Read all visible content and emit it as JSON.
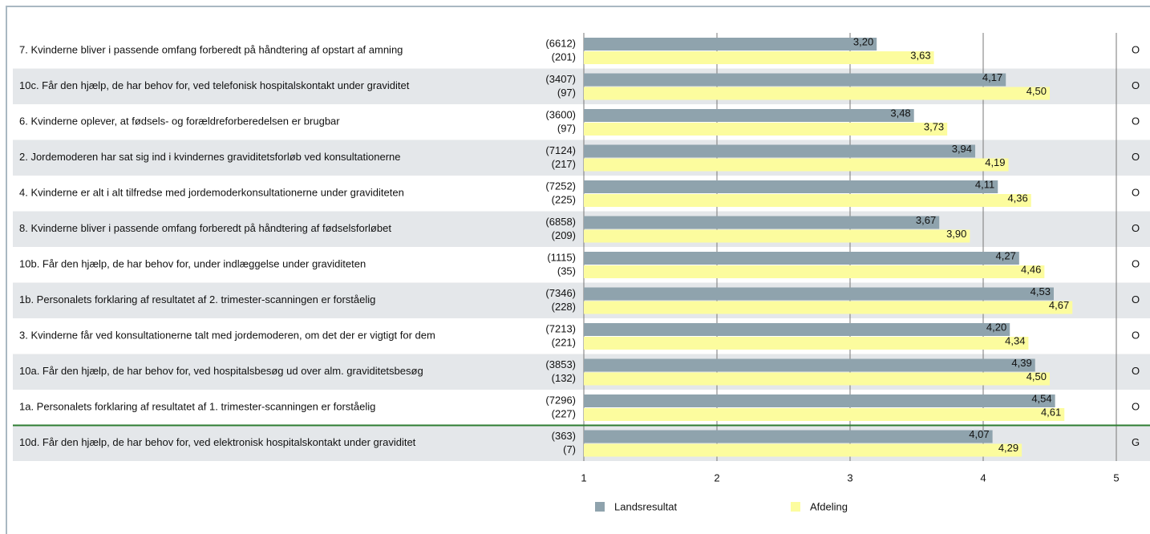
{
  "chart_data": {
    "type": "bar",
    "categories": [
      "7. Kvinderne bliver i passende omfang forberedt på håndtering af opstart af amning",
      "10c. Får den hjælp, de har behov for, ved telefonisk hospitalskontakt under graviditet",
      "6. Kvinderne oplever, at fødsels- og forældreforberedelsen er brugbar",
      "2. Jordemoderen har sat sig ind i kvindernes graviditetsforløb ved konsultationerne",
      "4. Kvinderne er alt i alt tilfredse med jordemoderkonsultationerne under graviditeten",
      "8. Kvinderne bliver i passende omfang forberedt på håndtering af fødselsforløbet",
      "10b. Får den hjælp, de har behov for, under indlæggelse under graviditeten",
      "1b. Personalets forklaring af resultatet af 2. trimester-scanningen er forståelig",
      "3. Kvinderne får ved konsultationerne talt med jordemoderen, om det der er vigtigt for dem",
      "10a. Får den hjælp, de har behov for, ved hospitalsbesøg ud over alm. graviditetsbesøg",
      "1a. Personalets forklaring af resultatet af 1. trimester-scanningen er forståelig",
      "10d. Får den hjælp, de har behov for, ved elektronisk hospitalskontakt under graviditet"
    ],
    "series": [
      {
        "name": "Landsresultat",
        "color": "#8fa3ad",
        "values": [
          3.2,
          4.17,
          3.48,
          3.94,
          4.11,
          3.67,
          4.27,
          4.53,
          4.2,
          4.39,
          4.54,
          4.07
        ],
        "value_labels": [
          "3,20",
          "4,17",
          "3,48",
          "3,94",
          "4,11",
          "3,67",
          "4,27",
          "4,53",
          "4,20",
          "4,39",
          "4,54",
          "4,07"
        ],
        "n": [
          6612,
          3407,
          3600,
          7124,
          7252,
          6858,
          1115,
          7346,
          7213,
          3853,
          7296,
          363
        ],
        "n_labels": [
          "(6612)",
          "(3407)",
          "(3600)",
          "(7124)",
          "(7252)",
          "(6858)",
          "(1115)",
          "(7346)",
          "(7213)",
          "(3853)",
          "(7296)",
          "(363)"
        ]
      },
      {
        "name": "Afdeling",
        "color": "#fcfc9e",
        "values": [
          3.63,
          4.5,
          3.73,
          4.19,
          4.36,
          3.9,
          4.46,
          4.67,
          4.34,
          4.5,
          4.61,
          4.29
        ],
        "value_labels": [
          "3,63",
          "4,50",
          "3,73",
          "4,19",
          "4,36",
          "3,90",
          "4,46",
          "4,67",
          "4,34",
          "4,50",
          "4,61",
          "4,29"
        ],
        "n": [
          201,
          97,
          97,
          217,
          225,
          209,
          35,
          228,
          221,
          132,
          227,
          7
        ],
        "n_labels": [
          "(201)",
          "(97)",
          "(97)",
          "(217)",
          "(225)",
          "(209)",
          "(35)",
          "(228)",
          "(221)",
          "(132)",
          "(227)",
          "(7)"
        ]
      }
    ],
    "grades": [
      "O",
      "O",
      "O",
      "O",
      "O",
      "O",
      "O",
      "O",
      "O",
      "O",
      "O",
      "G"
    ],
    "xlim": [
      1,
      5
    ],
    "xticks": [
      1,
      2,
      3,
      4,
      5
    ],
    "grid": true
  }
}
